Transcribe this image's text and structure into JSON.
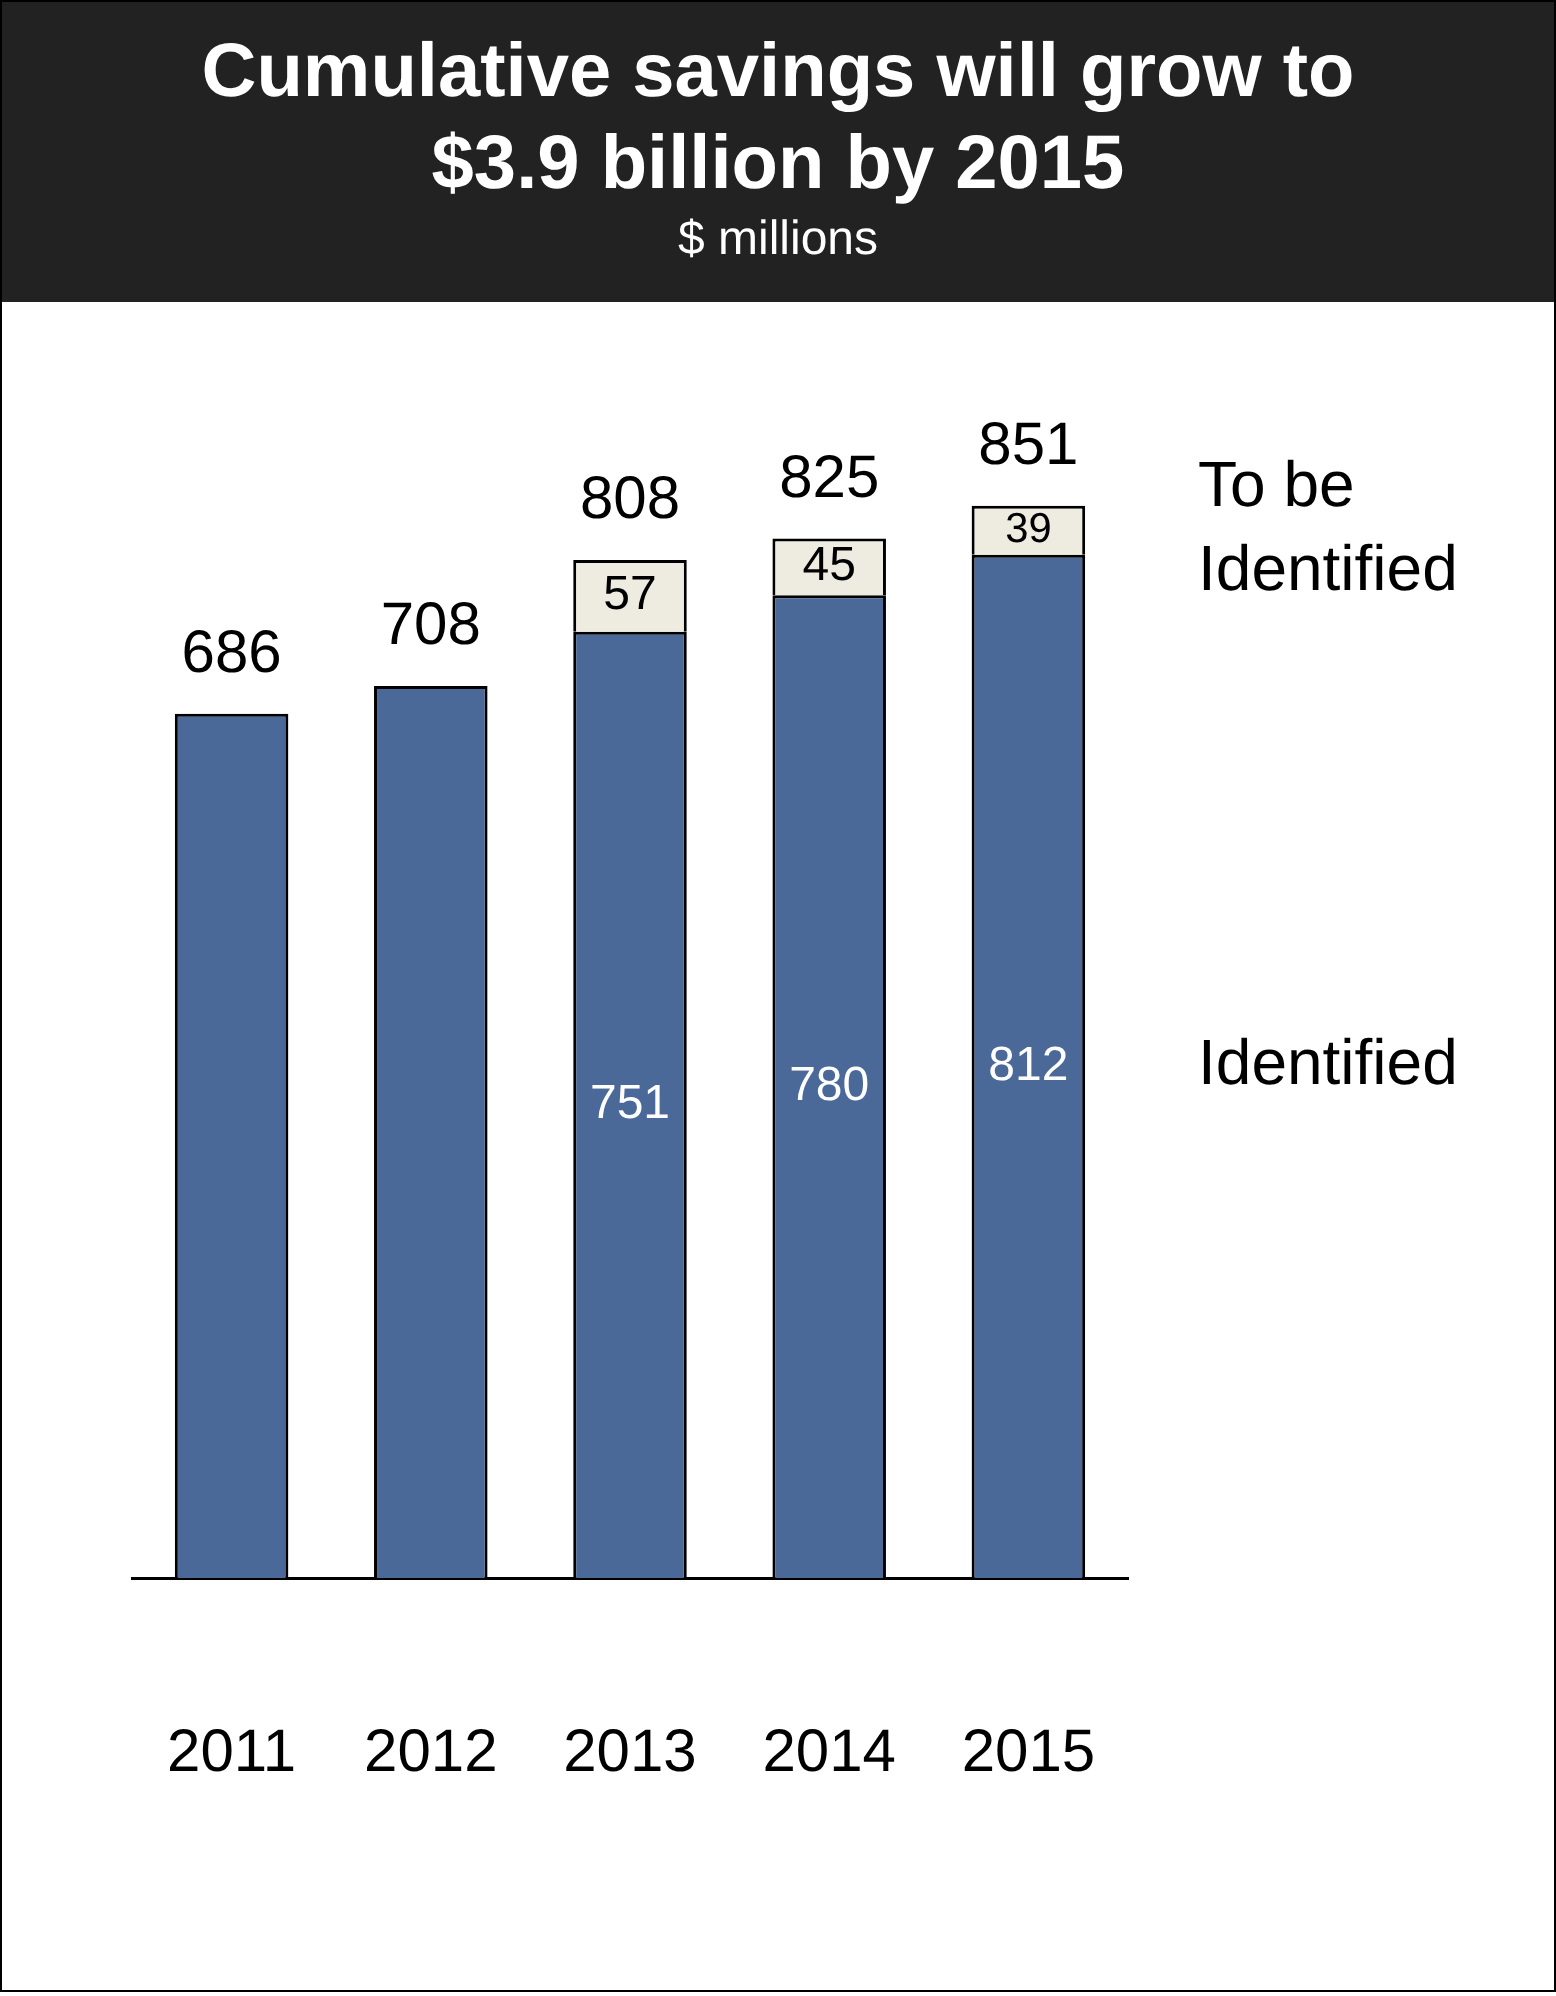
{
  "chart_data": {
    "type": "bar",
    "title": "Cumulative savings will grow to $3.9 billion by 2015",
    "subtitle": "$ millions",
    "categories": [
      "2011",
      "2012",
      "2013",
      "2014",
      "2015"
    ],
    "stacked": true,
    "series": [
      {
        "name": "Identified",
        "color": "#4a6898",
        "values": [
          686,
          708,
          751,
          780,
          812
        ],
        "value_labels": [
          null,
          null,
          "751",
          "780",
          "812"
        ]
      },
      {
        "name": "To be Identified",
        "color": "#eeece1",
        "values": [
          null,
          null,
          57,
          45,
          39
        ],
        "value_labels": [
          null,
          null,
          "57",
          "45",
          "39"
        ]
      }
    ],
    "totals": [
      "686",
      "708",
      "808",
      "825",
      "851"
    ]
  }
}
